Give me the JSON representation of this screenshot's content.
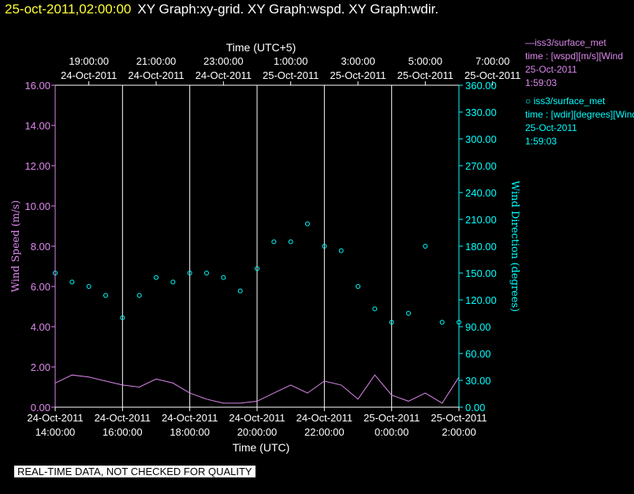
{
  "header": {
    "time": "25-oct-2011,02:00:00",
    "titles": "XY Graph:xy-grid.  XY Graph:wspd.  XY Graph:wdir."
  },
  "legend": {
    "series1": {
      "line1": "iss3/surface_met",
      "line2": "time : [wspd][m/s][Wind",
      "line3": "25-Oct-2011",
      "line4": "1:59:03"
    },
    "series2": {
      "line1": "iss3/surface_met",
      "line2": "time : [wdir][degrees][Wind",
      "line3": "25-Oct-2011",
      "line4": "1:59:03"
    }
  },
  "notice": "REAL-TIME DATA, NOT CHECKED FOR QUALITY",
  "colors": {
    "background": "#000000",
    "wspd": "#dd88ee",
    "wdir": "#00ffff",
    "header_time": "#ffff33",
    "grid": "#ffffff"
  },
  "chart_data": {
    "type": "scatter",
    "x_range_hours": [
      14,
      26
    ],
    "bottom_axis": {
      "label": "Time (UTC)",
      "ticks": [
        {
          "date": "24-Oct-2011",
          "time": "14:00:00"
        },
        {
          "date": "24-Oct-2011",
          "time": "16:00:00"
        },
        {
          "date": "24-Oct-2011",
          "time": "18:00:00"
        },
        {
          "date": "24-Oct-2011",
          "time": "20:00:00"
        },
        {
          "date": "24-Oct-2011",
          "time": "22:00:00"
        },
        {
          "date": "25-Oct-2011",
          "time": "0:00:00"
        },
        {
          "date": "25-Oct-2011",
          "time": "2:00:00"
        }
      ]
    },
    "top_axis": {
      "label": "Time (UTC+5)",
      "ticks": [
        {
          "time": "19:00:00",
          "date": "24-Oct-2011"
        },
        {
          "time": "21:00:00",
          "date": "24-Oct-2011"
        },
        {
          "time": "23:00:00",
          "date": "24-Oct-2011"
        },
        {
          "time": "1:00:00",
          "date": "25-Oct-2011"
        },
        {
          "time": "3:00:00",
          "date": "25-Oct-2011"
        },
        {
          "time": "5:00:00",
          "date": "25-Oct-2011"
        },
        {
          "time": "7:00:00",
          "date": "25-Oct-2011"
        }
      ]
    },
    "left_axis": {
      "label": "Wind Speed (m/s)",
      "ylim": [
        0,
        16
      ],
      "ticks": [
        "0.00",
        "2.00",
        "4.00",
        "6.00",
        "8.00",
        "10.00",
        "12.00",
        "14.00",
        "16.00"
      ]
    },
    "right_axis": {
      "label": "Wind Direction (degrees)",
      "ylim": [
        0,
        360
      ],
      "ticks": [
        "0.00",
        "30.00",
        "60.00",
        "90.00",
        "120.00",
        "150.00",
        "180.00",
        "210.00",
        "240.00",
        "270.00",
        "300.00",
        "330.00",
        "360.00"
      ]
    },
    "vertical_grid": true,
    "series": [
      {
        "name": "iss3/surface_met",
        "variable": "wspd",
        "style": "line",
        "axis": "left",
        "x": [
          14.0,
          14.5,
          15.0,
          15.5,
          16.0,
          16.5,
          17.0,
          17.5,
          18.0,
          18.5,
          19.0,
          19.5,
          20.0,
          20.5,
          21.0,
          21.5,
          22.0,
          22.5,
          23.0,
          23.5,
          24.0,
          24.5,
          25.0,
          25.5,
          26.0
        ],
        "values": [
          1.2,
          1.6,
          1.5,
          1.3,
          1.1,
          1.0,
          1.4,
          1.2,
          0.7,
          0.4,
          0.2,
          0.2,
          0.3,
          0.7,
          1.1,
          0.7,
          1.3,
          1.1,
          0.4,
          1.6,
          0.6,
          0.3,
          0.7,
          0.2,
          1.5
        ]
      },
      {
        "name": "iss3/surface_met",
        "variable": "wdir",
        "style": "scatter",
        "axis": "right",
        "x": [
          14.0,
          14.5,
          15.0,
          15.5,
          16.0,
          16.5,
          17.0,
          17.5,
          18.0,
          18.5,
          19.0,
          19.5,
          20.0,
          20.5,
          21.0,
          21.5,
          22.0,
          22.5,
          23.0,
          23.5,
          24.0,
          24.5,
          25.0,
          25.5,
          26.0
        ],
        "values": [
          150,
          140,
          135,
          125,
          100,
          125,
          145,
          140,
          150,
          150,
          145,
          130,
          155,
          185,
          185,
          205,
          180,
          175,
          135,
          110,
          95,
          105,
          180,
          95,
          95
        ]
      }
    ]
  }
}
